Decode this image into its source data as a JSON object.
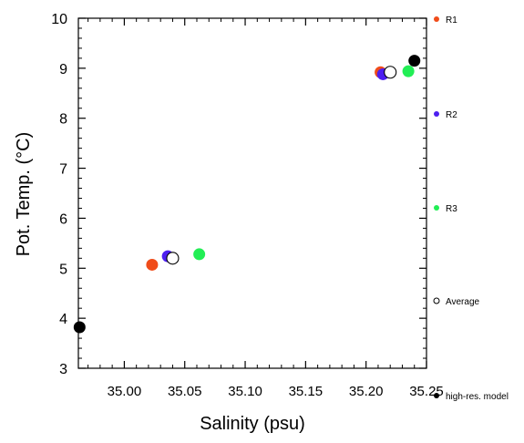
{
  "chart_data": {
    "type": "scatter",
    "xlabel": "Salinity (psu)",
    "ylabel": "Pot. Temp. (°C)",
    "xlim": [
      34.962,
      35.25
    ],
    "ylim": [
      3,
      10
    ],
    "xticks": [
      35.0,
      35.05,
      35.1,
      35.15,
      35.2,
      35.25
    ],
    "xtick_labels": [
      "35.00",
      "35.05",
      "35.10",
      "35.15",
      "35.20",
      "35.25"
    ],
    "yticks": [
      3,
      4,
      5,
      6,
      7,
      8,
      9,
      10
    ],
    "ytick_labels": [
      "3",
      "4",
      "5",
      "6",
      "7",
      "8",
      "9",
      "10"
    ],
    "grid": false,
    "legend_position": "right",
    "series": [
      {
        "name": "R1",
        "color": "#f04c1a",
        "marker": "filled-circle",
        "points": [
          [
            35.023,
            5.07
          ],
          [
            35.212,
            8.92
          ]
        ]
      },
      {
        "name": "R2",
        "color": "#4d1ff0",
        "marker": "filled-circle",
        "points": [
          [
            35.036,
            5.24
          ],
          [
            35.214,
            8.88
          ]
        ]
      },
      {
        "name": "R3",
        "color": "#22ee55",
        "marker": "filled-circle",
        "points": [
          [
            35.062,
            5.28
          ],
          [
            35.235,
            8.94
          ]
        ]
      },
      {
        "name": "Average",
        "color": "#000000",
        "marker": "open-circle",
        "points": [
          [
            35.04,
            5.2
          ],
          [
            35.22,
            8.92
          ]
        ]
      },
      {
        "name": "high-res. model",
        "color": "#000000",
        "marker": "filled-circle",
        "points": [
          [
            34.963,
            3.82
          ],
          [
            35.24,
            9.15
          ]
        ]
      }
    ]
  }
}
